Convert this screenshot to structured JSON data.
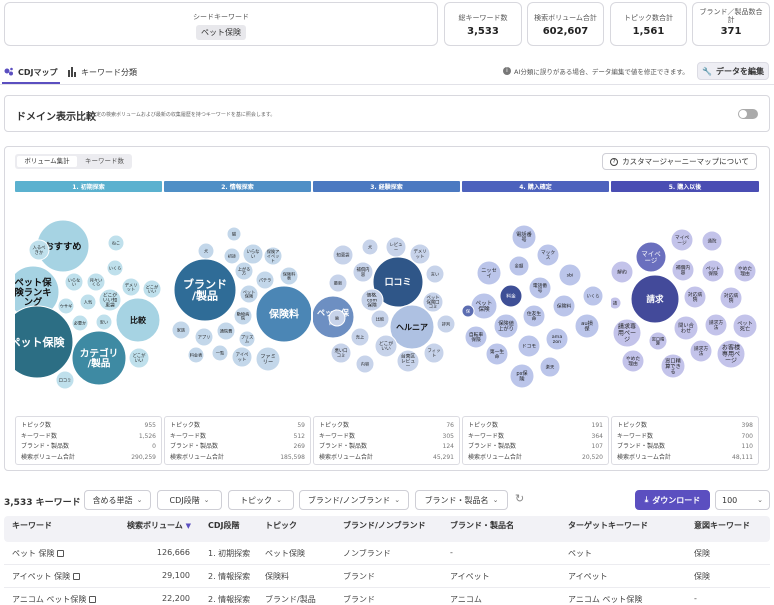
{
  "seed": {
    "label": "シードキーワード",
    "value": "ペット保険"
  },
  "metrics": [
    {
      "label": "総キーワード数",
      "value": "3,533"
    },
    {
      "label": "検索ボリューム合計",
      "value": "602,607"
    },
    {
      "label": "トピック数合計",
      "value": "1,561"
    },
    {
      "label": "ブランド／製品数合計",
      "value": "371"
    }
  ],
  "tabs": {
    "map": "CDJマップ",
    "classify": "キーワード分類"
  },
  "ai_note": "AI分類に誤りがある場合、データ編集で値を修正できます。",
  "edit_button": "データを編集",
  "domain": {
    "title": "ドメイン表示比較",
    "desc": "一定の検索ボリュームおよび最新の収集履歴を持つキーワードを基に照会します。"
  },
  "toggle": {
    "volume": "ボリューム集計",
    "count": "キーワード数"
  },
  "about_button": "カスタマージャーニーマップについて",
  "phases": [
    "1. 初期探索",
    "2. 情報探索",
    "3. 経験探索",
    "4. 購入確定",
    "5. 購入以後"
  ],
  "stat_labels": [
    "トピック数",
    "キーワード数",
    "ブランド・製品数",
    "検索ボリューム合計"
  ],
  "stats": [
    [
      "955",
      "1,526",
      "0",
      "290,259"
    ],
    [
      "59",
      "512",
      "269",
      "185,598"
    ],
    [
      "76",
      "305",
      "124",
      "45,291"
    ],
    [
      "191",
      "364",
      "107",
      "20,520"
    ],
    [
      "398",
      "700",
      "110",
      "48,111"
    ]
  ],
  "filters": {
    "count": "3,533",
    "count_unit": "キーワード",
    "include": "含める単語",
    "cdj": "CDJ段階",
    "topic": "トピック",
    "brand": "ブランド/ノンブランド",
    "product": "ブランド・製品名",
    "download": "ダウンロード",
    "page_size": "100"
  },
  "columns": [
    "キーワード",
    "検索ボリューム",
    "CDJ段階",
    "トピック",
    "ブランド/ノンブランド",
    "ブランド・製品名",
    "ターゲットキーワード",
    "意図キーワード"
  ],
  "rows": [
    [
      "ペット 保険",
      "126,666",
      "1. 初期探索",
      "ペット保険",
      "ノンブランド",
      "-",
      "ペット",
      "保険"
    ],
    [
      "アイペット 保険",
      "29,100",
      "2. 情報探索",
      "保険料",
      "ブランド",
      "アイペット",
      "アイペット",
      "保険"
    ],
    [
      "アニコム ペット保険",
      "22,200",
      "2. 情報探索",
      "ブランド/製品",
      "ブランド",
      "アニコム",
      "アニコム ペット保険",
      "-"
    ]
  ],
  "colors": {
    "phase1": "#5bb1cf",
    "phase2": "#4f8fc6",
    "phase3": "#4b79c1",
    "phase4": "#4d62bd",
    "phase5": "#4a4db3",
    "accent": "#5b4fc0"
  },
  "bubbles": [
    [
      {
        "t": "おすすめ",
        "c": "#a6d3e3",
        "tc": "#111"
      },
      {
        "t": "ペット保険ランキング",
        "c": "#a6d3e3",
        "tc": "#111"
      },
      {
        "t": "比較",
        "c": "#a6d3e3",
        "tc": "#111"
      },
      {
        "t": "ペット保険",
        "c": "#2c6e84",
        "tc": "#fff"
      },
      {
        "t": "カテゴリ/製品",
        "c": "#3e8aa3",
        "tc": "#fff"
      },
      {
        "t": "入るべきか",
        "c": "#bfe0ec",
        "tc": "#222"
      },
      {
        "t": "ねこ",
        "c": "#bfe0ec",
        "tc": "#222"
      },
      {
        "t": "いくら",
        "c": "#bfe0ec",
        "tc": "#222"
      },
      {
        "t": "いらない",
        "c": "#bfe0ec",
        "tc": "#222"
      },
      {
        "t": "月々いくら",
        "c": "#bfe0ec",
        "tc": "#222"
      },
      {
        "t": "デメリット",
        "c": "#bfe0ec",
        "tc": "#222"
      },
      {
        "t": "どこがいい",
        "c": "#bfe0ec",
        "tc": "#222"
      },
      {
        "t": "ウサギ",
        "c": "#bfe0ec",
        "tc": "#222"
      },
      {
        "t": "人気",
        "c": "#bfe0ec",
        "tc": "#222"
      },
      {
        "t": "どこがいい知恵袋",
        "c": "#bfe0ec",
        "tc": "#222"
      },
      {
        "t": "必要か",
        "c": "#bfe0ec",
        "tc": "#222"
      },
      {
        "t": "安い",
        "c": "#bfe0ec",
        "tc": "#222"
      },
      {
        "t": "どこがいい",
        "c": "#bfe0ec",
        "tc": "#222"
      },
      {
        "t": "口コミ",
        "c": "#bfe0ec",
        "tc": "#222"
      }
    ],
    [
      {
        "t": "ブランド/製品",
        "c": "#2f6c97",
        "tc": "#fff"
      },
      {
        "t": "保険料",
        "c": "#4b86b5",
        "tc": "#fff"
      },
      {
        "t": "猫",
        "c": "#c3d7ea",
        "tc": "#222"
      },
      {
        "t": "犬",
        "c": "#c3d7ea",
        "tc": "#222"
      },
      {
        "t": "初診",
        "c": "#c3d7ea",
        "tc": "#222"
      },
      {
        "t": "いらない",
        "c": "#c3d7ea",
        "tc": "#222"
      },
      {
        "t": "保険アイペット",
        "c": "#c3d7ea",
        "tc": "#222"
      },
      {
        "t": "上がる方",
        "c": "#c3d7ea",
        "tc": "#222"
      },
      {
        "t": "パテラ",
        "c": "#c3d7ea",
        "tc": "#222"
      },
      {
        "t": "保険料表",
        "c": "#c3d7ea",
        "tc": "#222"
      },
      {
        "t": "ペット保険",
        "c": "#c3d7ea",
        "tc": "#222"
      },
      {
        "t": "家族",
        "c": "#c3d7ea",
        "tc": "#222"
      },
      {
        "t": "アプリ",
        "c": "#c3d7ea",
        "tc": "#222"
      },
      {
        "t": "通院費",
        "c": "#c3d7ea",
        "tc": "#222"
      },
      {
        "t": "動物病院",
        "c": "#c3d7ea",
        "tc": "#222"
      },
      {
        "t": "プリズム",
        "c": "#c3d7ea",
        "tc": "#222"
      },
      {
        "t": "料金表",
        "c": "#c3d7ea",
        "tc": "#222"
      },
      {
        "t": "一覧",
        "c": "#c3d7ea",
        "tc": "#222"
      },
      {
        "t": "アイペット",
        "c": "#c3d7ea",
        "tc": "#222"
      },
      {
        "t": "ファミリー",
        "c": "#c3d7ea",
        "tc": "#222"
      },
      {
        "t": "アレルギー検査",
        "c": "#c3d7ea",
        "tc": "#222"
      }
    ],
    [
      {
        "t": "口コミ",
        "c": "#2f5688",
        "tc": "#fff"
      },
      {
        "t": "ペット保険",
        "c": "#6d8fc2",
        "tc": "#fff"
      },
      {
        "t": "ヘルニア",
        "c": "#aec1e2",
        "tc": "#111"
      },
      {
        "t": "犬",
        "c": "#c7d3ea",
        "tc": "#222"
      },
      {
        "t": "レビュー",
        "c": "#c7d3ea",
        "tc": "#222"
      },
      {
        "t": "デメリット",
        "c": "#c7d3ea",
        "tc": "#222"
      },
      {
        "t": "知恵袋",
        "c": "#c7d3ea",
        "tc": "#222"
      },
      {
        "t": "補償内容",
        "c": "#c7d3ea",
        "tc": "#222"
      },
      {
        "t": "言い",
        "c": "#c7d3ea",
        "tc": "#222"
      },
      {
        "t": "最新",
        "c": "#c7d3ea",
        "tc": "#222"
      },
      {
        "t": "価格.com保険",
        "c": "#c7d3ea",
        "tc": "#222"
      },
      {
        "t": "ペット保険口コミ",
        "c": "#c7d3ea",
        "tc": "#222"
      },
      {
        "t": "比較",
        "c": "#c7d3ea",
        "tc": "#222"
      },
      {
        "t": "評判",
        "c": "#c7d3ea",
        "tc": "#222"
      },
      {
        "t": "歯",
        "c": "#c7d3ea",
        "tc": "#222"
      },
      {
        "t": "売上",
        "c": "#c7d3ea",
        "tc": "#222"
      },
      {
        "t": "どこがいい",
        "c": "#c7d3ea",
        "tc": "#222"
      },
      {
        "t": "悪い口コミ",
        "c": "#c7d3ea",
        "tc": "#222"
      },
      {
        "t": "内容",
        "c": "#c7d3ea",
        "tc": "#222"
      },
      {
        "t": "台東区レビュー",
        "c": "#c7d3ea",
        "tc": "#222"
      },
      {
        "t": "フィット",
        "c": "#c7d3ea",
        "tc": "#222"
      }
    ],
    [
      {
        "t": "電話番号",
        "c": "#bbc5ea",
        "tc": "#222"
      },
      {
        "t": "マックス",
        "c": "#bbc5ea",
        "tc": "#222"
      },
      {
        "t": "金額",
        "c": "#bbc5ea",
        "tc": "#222"
      },
      {
        "t": "ニッセイ",
        "c": "#bbc5ea",
        "tc": "#222"
      },
      {
        "t": "sbi",
        "c": "#bbc5ea",
        "tc": "#222"
      },
      {
        "t": "料金",
        "c": "#3e4f96",
        "tc": "#fff"
      },
      {
        "t": "電話番号",
        "c": "#bbc5ea",
        "tc": "#222"
      },
      {
        "t": "いくら",
        "c": "#bbc5ea",
        "tc": "#222"
      },
      {
        "t": "ペット保険",
        "c": "#bbc5ea",
        "tc": "#222"
      },
      {
        "t": "住友生命",
        "c": "#bbc5ea",
        "tc": "#222"
      },
      {
        "t": "保険料",
        "c": "#bbc5ea",
        "tc": "#222"
      },
      {
        "t": "保険値上がり",
        "c": "#bbc5ea",
        "tc": "#222"
      },
      {
        "t": "au損保",
        "c": "#bbc5ea",
        "tc": "#222"
      },
      {
        "t": "自転車保険",
        "c": "#bbc5ea",
        "tc": "#222"
      },
      {
        "t": "ドコモ",
        "c": "#bbc5ea",
        "tc": "#222"
      },
      {
        "t": "amazon",
        "c": "#bbc5ea",
        "tc": "#222"
      },
      {
        "t": "第一生命",
        "c": "#bbc5ea",
        "tc": "#222"
      },
      {
        "t": "楽天",
        "c": "#bbc5ea",
        "tc": "#222"
      },
      {
        "t": "ps保険",
        "c": "#bbc5ea",
        "tc": "#222"
      },
      {
        "t": "保",
        "c": "#5c6db1",
        "tc": "#fff"
      }
    ],
    [
      {
        "t": "請求",
        "c": "#434a9a",
        "tc": "#fff"
      },
      {
        "t": "マイページ",
        "c": "#6a6fbe",
        "tc": "#fff"
      },
      {
        "t": "マイページ",
        "c": "#c3c3ea",
        "tc": "#222"
      },
      {
        "t": "通院",
        "c": "#c3c3ea",
        "tc": "#222"
      },
      {
        "t": "解約",
        "c": "#c3c3ea",
        "tc": "#222"
      },
      {
        "t": "補償内容",
        "c": "#c3c3ea",
        "tc": "#222"
      },
      {
        "t": "ペット保険",
        "c": "#c3c3ea",
        "tc": "#222"
      },
      {
        "t": "やめた理由",
        "c": "#c3c3ea",
        "tc": "#222"
      },
      {
        "t": "対応病院",
        "c": "#c3c3ea",
        "tc": "#222"
      },
      {
        "t": "対応病院",
        "c": "#c3c3ea",
        "tc": "#222"
      },
      {
        "t": "請求専用ページ",
        "c": "#c3c3ea",
        "tc": "#222"
      },
      {
        "t": "問い合わせ",
        "c": "#c3c3ea",
        "tc": "#222"
      },
      {
        "t": "請求方法",
        "c": "#c3c3ea",
        "tc": "#222"
      },
      {
        "t": "ペット死亡",
        "c": "#c3c3ea",
        "tc": "#222"
      },
      {
        "t": "窓口精算",
        "c": "#c3c3ea",
        "tc": "#222"
      },
      {
        "t": "請求方法",
        "c": "#c3c3ea",
        "tc": "#222"
      },
      {
        "t": "お客様専用ページ",
        "c": "#c3c3ea",
        "tc": "#222"
      },
      {
        "t": "やめた理由",
        "c": "#c3c3ea",
        "tc": "#222"
      },
      {
        "t": "窓口精算できる",
        "c": "#c3c3ea",
        "tc": "#222"
      },
      {
        "t": "請",
        "c": "#c3c3ea",
        "tc": "#222"
      }
    ]
  ]
}
